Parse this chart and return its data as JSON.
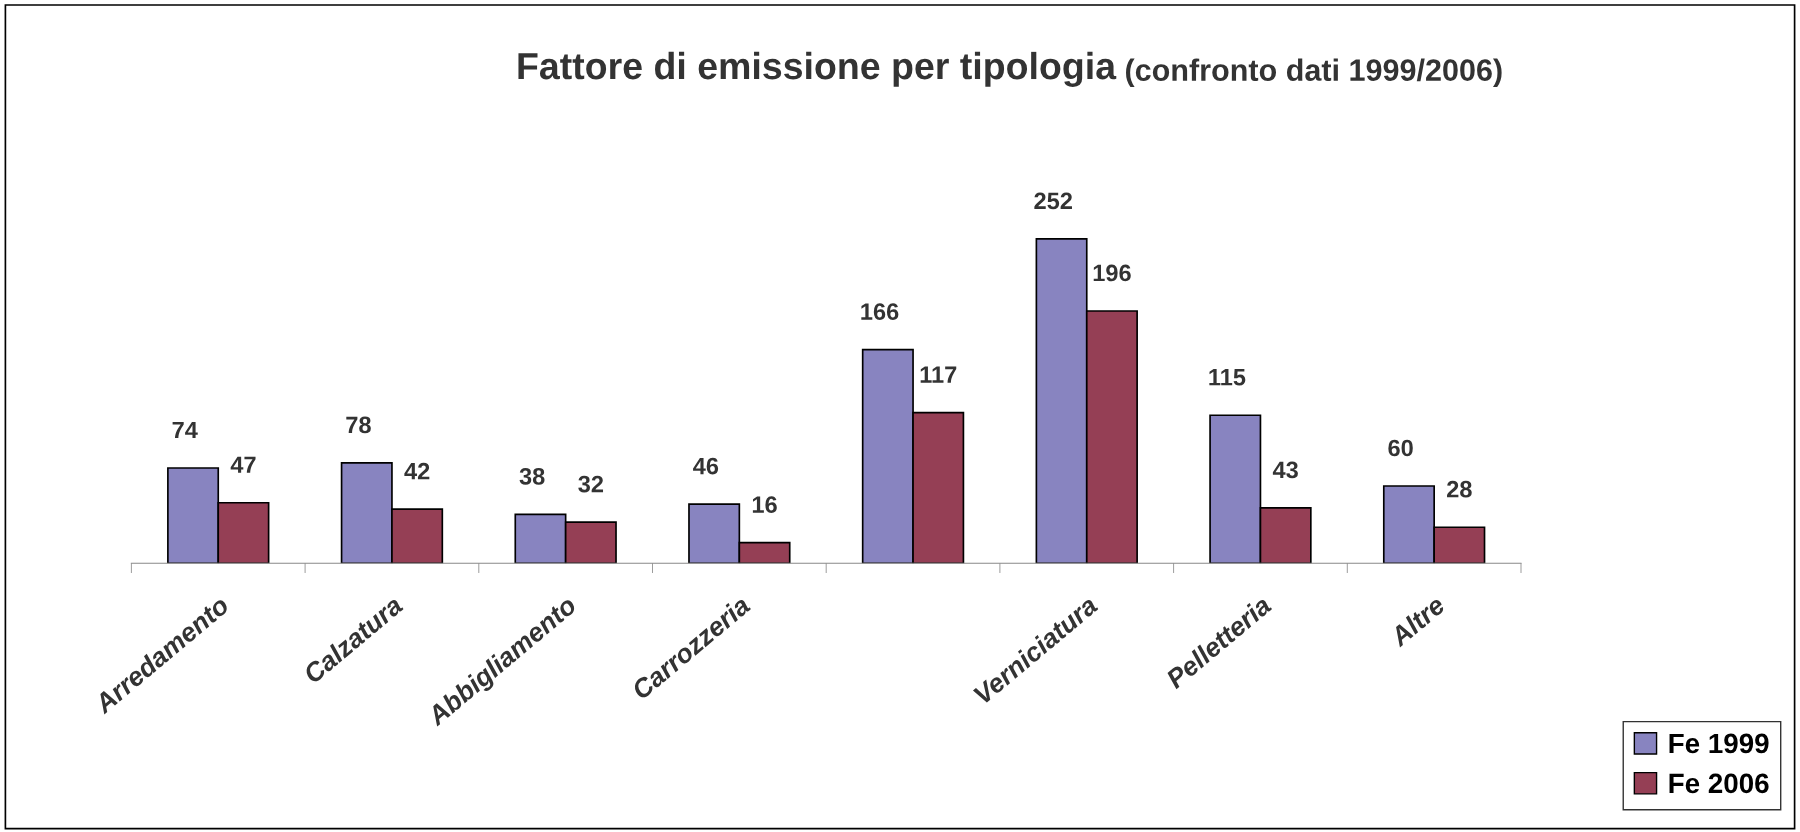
{
  "chart_data": {
    "type": "bar",
    "title": "Fattore di emissione per tipologia",
    "subtitle": "(confronto dati 1999/2006)",
    "categories": [
      "Arredamento",
      "Calzatura",
      "Abbigliamento",
      "Carrozzeria",
      null,
      "Verniciatura",
      "Pelletteria",
      "Altre"
    ],
    "series": [
      {
        "name": "Fe 1999",
        "color": "#8884c0",
        "values": [
          74,
          78,
          38,
          46,
          166,
          252,
          115,
          60
        ]
      },
      {
        "name": "Fe 2006",
        "color": "#953f55",
        "values": [
          47,
          42,
          32,
          16,
          117,
          196,
          43,
          28
        ]
      }
    ],
    "data_labels": true,
    "legend": "bottom right",
    "grid": false
  }
}
